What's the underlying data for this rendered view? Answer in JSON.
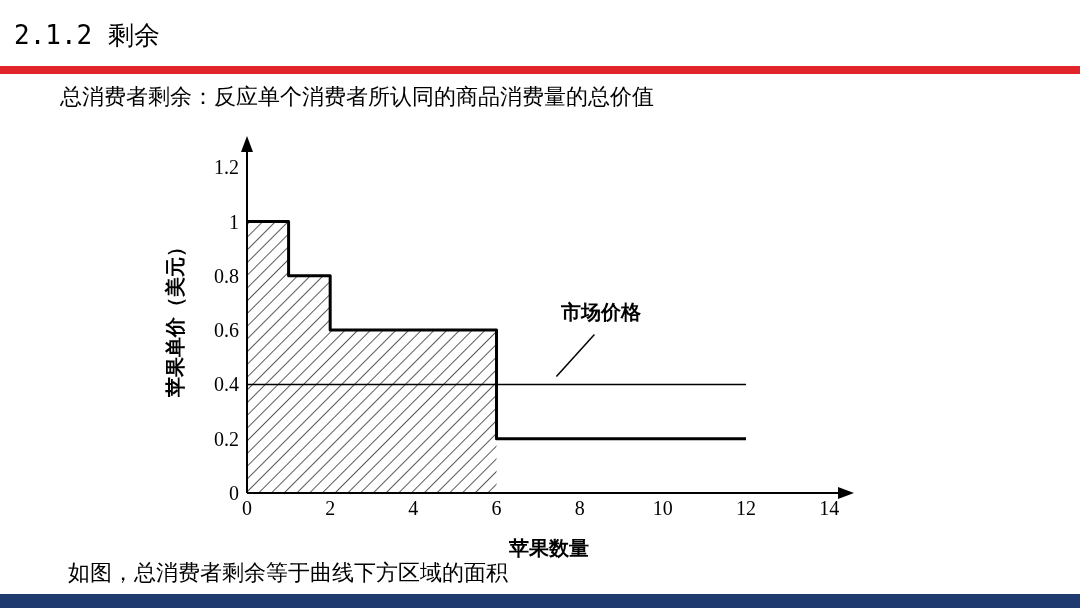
{
  "chart_data": {
    "type": "step",
    "title": "2.1.2 剩余",
    "subtitle": "总消费者剩余：反应单个消费者所认同的商品消费量的总价值",
    "annotations": [
      "如图，总消费者剩余等于曲线下方区域的面积"
    ],
    "xlabel": "苹果数量",
    "ylabel": "苹果单价（美元）",
    "series": [
      {
        "type": "area",
        "color": "#000000",
        "x": [
          0,
          1,
          2,
          6
        ],
        "values": [
          1,
          0.8,
          0.6,
          0.6
        ]
      },
      {
        "color": "#000000",
        "x": [
          0,
          1,
          2,
          6,
          12
        ],
        "values": [
          1,
          0.8,
          0.6,
          0.2,
          0.2
        ]
      },
      {
        "type": "line",
        "name": "市场价格",
        "color": "#000000",
        "x": [
          0,
          12
        ],
        "values": [
          0.4,
          0.4
        ]
      }
    ],
    "xlim": [
      0,
      14.5
    ],
    "xticks": [
      0,
      2,
      4,
      6,
      8,
      10,
      12,
      14
    ],
    "ylim": [
      0,
      1.3
    ],
    "yticks": [
      0,
      0.2,
      0.4,
      0.6,
      0.8,
      1,
      1.2
    ],
    "grid": false,
    "legend": false,
    "marker": "none",
    "line_style": "solid"
  }
}
